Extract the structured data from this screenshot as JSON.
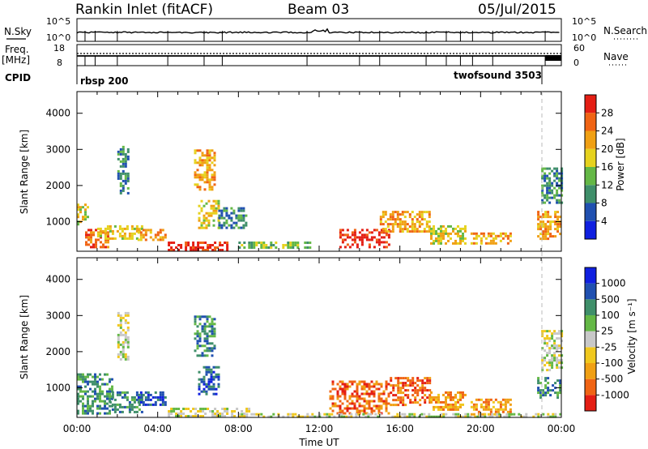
{
  "header": {
    "station": "Rankin Inlet (fitACF)",
    "beam": "Beam 03",
    "date": "05/Jul/2015"
  },
  "summary_panels": {
    "nsky_label": "N.Sky",
    "nsearch_label": "N.Search",
    "freq_label_line1": "Freq.",
    "freq_label_line2": "[MHz]",
    "nave_label": "Nave",
    "cpid_label": "CPID",
    "noise_ticks": [
      "10^5",
      "10^0"
    ],
    "freq_ticks": [
      "18",
      "8"
    ],
    "nave_ticks": [
      "60",
      "0"
    ],
    "cpid_programs": [
      {
        "name": "rbsp 200",
        "start_hour": 0,
        "end_hour": 23.2
      },
      {
        "name": "twofsound 3503",
        "start_hour": 23.2,
        "end_hour": 24
      }
    ]
  },
  "chart_data": [
    {
      "type": "heatmap",
      "title": "Power",
      "xlabel": "Time UT",
      "ylabel": "Slant Range [km]",
      "colorbar_label": "Power [dB]",
      "colorbar_ticks": [
        "4",
        "8",
        "12",
        "16",
        "20",
        "24",
        "28"
      ],
      "colorbar_colors": [
        "#1020e0",
        "#2050b0",
        "#3f8f6a",
        "#64b846",
        "#e6d21e",
        "#f0a014",
        "#f06414",
        "#e41e14"
      ],
      "x_ticks": [
        "00:00",
        "04:00",
        "08:00",
        "12:00",
        "16:00",
        "20:00",
        "00:00"
      ],
      "y_ticks": [
        "1000",
        "2000",
        "3000",
        "4000"
      ],
      "xlim_hours": [
        0,
        24
      ],
      "ylim_km": [
        180,
        4600
      ],
      "echo_regions": [
        {
          "t0": 0.0,
          "t1": 0.5,
          "r0": 900,
          "r1": 1500,
          "level": 4
        },
        {
          "t0": 0.4,
          "t1": 1.6,
          "r0": 300,
          "r1": 800,
          "level": 6
        },
        {
          "t0": 1.0,
          "t1": 3.2,
          "r0": 500,
          "r1": 900,
          "level": 4
        },
        {
          "t0": 2.0,
          "t1": 2.6,
          "r0": 1800,
          "r1": 3100,
          "level": 2
        },
        {
          "t0": 3.0,
          "t1": 4.4,
          "r0": 500,
          "r1": 800,
          "level": 5
        },
        {
          "t0": 4.5,
          "t1": 7.4,
          "r0": 200,
          "r1": 450,
          "level": 7
        },
        {
          "t0": 5.8,
          "t1": 6.8,
          "r0": 1900,
          "r1": 3000,
          "level": 5
        },
        {
          "t0": 6.0,
          "t1": 7.0,
          "r0": 800,
          "r1": 1600,
          "level": 4
        },
        {
          "t0": 7.0,
          "t1": 8.4,
          "r0": 800,
          "r1": 1400,
          "level": 2
        },
        {
          "t0": 8.0,
          "t1": 11.5,
          "r0": 250,
          "r1": 450,
          "level": 3
        },
        {
          "t0": 13.0,
          "t1": 15.5,
          "r0": 300,
          "r1": 800,
          "level": 7
        },
        {
          "t0": 15.0,
          "t1": 17.5,
          "r0": 700,
          "r1": 1300,
          "level": 5
        },
        {
          "t0": 17.5,
          "t1": 19.2,
          "r0": 400,
          "r1": 900,
          "level": 4
        },
        {
          "t0": 19.5,
          "t1": 21.5,
          "r0": 400,
          "r1": 700,
          "level": 5
        },
        {
          "t0": 22.8,
          "t1": 24.0,
          "r0": 500,
          "r1": 1300,
          "level": 5
        },
        {
          "t0": 23.0,
          "t1": 24.0,
          "r0": 1500,
          "r1": 2500,
          "level": 2
        }
      ]
    },
    {
      "type": "heatmap",
      "title": "Velocity",
      "xlabel": "Time UT",
      "ylabel": "Slant Range [km]",
      "colorbar_label": "Velocity  [m s⁻¹]",
      "colorbar_ticks": [
        "-1000",
        "-500",
        "-100",
        "-25",
        "25",
        "100",
        "500",
        "1000"
      ],
      "colorbar_colors": [
        "#e41e14",
        "#f06414",
        "#f0a014",
        "#f0c81e",
        "#c8c8c8",
        "#64b846",
        "#3f8f6a",
        "#2050b0",
        "#1020e0"
      ],
      "x_ticks": [
        "00:00",
        "04:00",
        "08:00",
        "12:00",
        "16:00",
        "20:00",
        "00:00"
      ],
      "y_ticks": [
        "1000",
        "2000",
        "3000",
        "4000"
      ],
      "xlim_hours": [
        0,
        24
      ],
      "ylim_km": [
        180,
        4600
      ],
      "echo_regions": [
        {
          "t0": 0.0,
          "t1": 1.8,
          "r0": 300,
          "r1": 1400,
          "level": 6
        },
        {
          "t0": 1.6,
          "t1": 3.2,
          "r0": 300,
          "r1": 900,
          "level": 6
        },
        {
          "t0": 2.0,
          "t1": 2.6,
          "r0": 1800,
          "r1": 3100,
          "level": 4
        },
        {
          "t0": 3.0,
          "t1": 4.4,
          "r0": 500,
          "r1": 900,
          "level": 7
        },
        {
          "t0": 4.5,
          "t1": 8.5,
          "r0": 200,
          "r1": 450,
          "level": 4
        },
        {
          "t0": 5.8,
          "t1": 6.8,
          "r0": 1900,
          "r1": 3000,
          "level": 6
        },
        {
          "t0": 6.0,
          "t1": 7.0,
          "r0": 800,
          "r1": 1600,
          "level": 7
        },
        {
          "t0": 12.5,
          "t1": 15.5,
          "r0": 300,
          "r1": 1200,
          "level": 1
        },
        {
          "t0": 15.5,
          "t1": 17.5,
          "r0": 500,
          "r1": 1300,
          "level": 1
        },
        {
          "t0": 17.5,
          "t1": 19.2,
          "r0": 400,
          "r1": 900,
          "level": 2
        },
        {
          "t0": 19.5,
          "t1": 21.5,
          "r0": 250,
          "r1": 700,
          "level": 2
        },
        {
          "t0": 8.0,
          "t1": 24.0,
          "r0": 180,
          "r1": 300,
          "level": 4
        },
        {
          "t0": 22.8,
          "t1": 24.0,
          "r0": 700,
          "r1": 1300,
          "level": 6
        },
        {
          "t0": 23.0,
          "t1": 24.0,
          "r0": 1500,
          "r1": 2600,
          "level": 4
        }
      ]
    }
  ]
}
